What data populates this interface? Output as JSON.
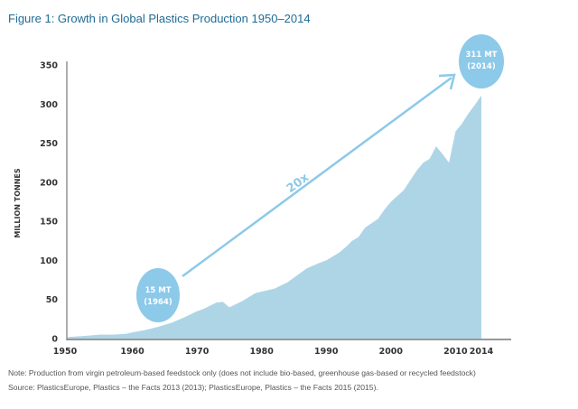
{
  "chart_data": {
    "type": "area",
    "title": "Figure 1: Growth in Global Plastics Production 1950–2014",
    "xlabel": "",
    "ylabel": "MILLION TONNES",
    "xlim": [
      1950,
      2014
    ],
    "ylim": [
      0,
      350
    ],
    "xticks": [
      "1950",
      "1960",
      "1970",
      "1980",
      "1990",
      "2000",
      "2010",
      "2014"
    ],
    "yticks": [
      "0",
      "50",
      "100",
      "150",
      "200",
      "250",
      "300",
      "350"
    ],
    "x": [
      1950,
      1952,
      1955,
      1957,
      1959,
      1960,
      1962,
      1964,
      1966,
      1968,
      1970,
      1971,
      1973,
      1974,
      1975,
      1977,
      1979,
      1980,
      1982,
      1984,
      1985,
      1987,
      1989,
      1990,
      1992,
      1993,
      1994,
      1995,
      1996,
      1998,
      1999,
      2000,
      2002,
      2004,
      2005,
      2006,
      2007,
      2008,
      2009,
      2010,
      2011,
      2012,
      2013,
      2014
    ],
    "values": [
      2,
      3,
      5,
      5,
      6,
      8,
      11,
      15,
      20,
      27,
      35,
      38,
      46,
      47,
      40,
      48,
      58,
      60,
      64,
      72,
      78,
      90,
      97,
      100,
      110,
      117,
      125,
      130,
      142,
      153,
      165,
      175,
      190,
      215,
      225,
      230,
      246,
      236,
      225,
      265,
      275,
      288,
      299,
      311
    ],
    "color": "#aed5e6",
    "annotations": [
      {
        "line1": "15 MT",
        "line2": "(1964)"
      },
      {
        "line1": "311 MT",
        "line2": "(2014)"
      },
      {
        "text": "20x"
      }
    ],
    "annotation_color": "#8dc9e8",
    "grid": false
  },
  "footer": {
    "note": "Note: Production from virgin petroleum-based feedstock only (does not include bio-based, greenhouse gas-based or recycled feedstock)",
    "source": "Source: PlasticsEurope, Plastics – the Facts 2013 (2013); PlasticsEurope, Plastics – the Facts 2015 (2015)."
  }
}
